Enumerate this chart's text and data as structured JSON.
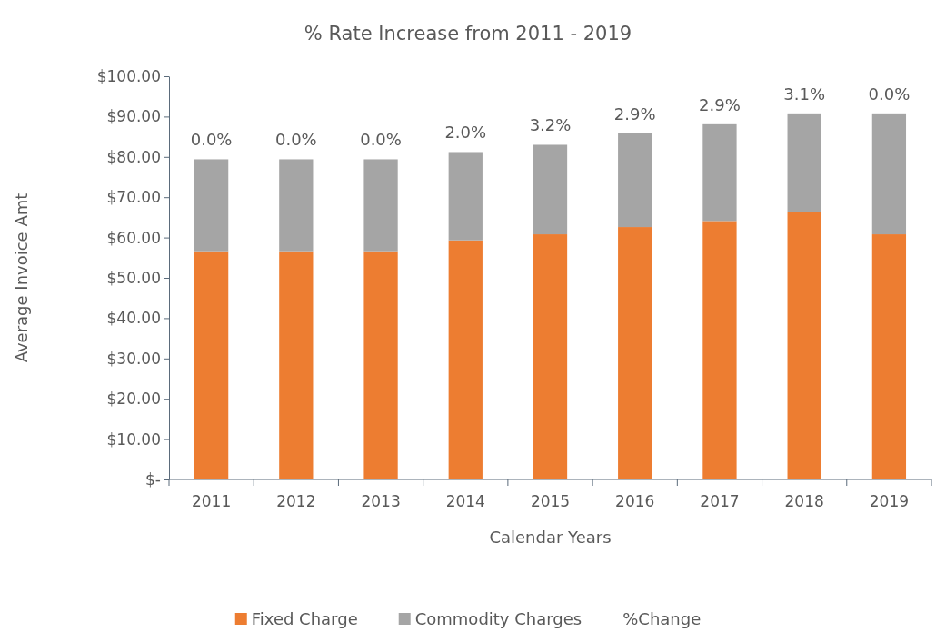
{
  "chart_data": {
    "type": "bar",
    "title": "% Rate Increase from 2011 - 2019",
    "xlabel": "Calendar Years",
    "ylabel": "Average Invoice Amt",
    "categories": [
      "2011",
      "2012",
      "2013",
      "2014",
      "2015",
      "2016",
      "2017",
      "2018",
      "2019"
    ],
    "stacked": true,
    "legend": "bottom",
    "grid": false,
    "ylim": [
      0,
      100
    ],
    "yticks": [
      {
        "value": 0,
        "label": "$-"
      },
      {
        "value": 10,
        "label": "$10.00"
      },
      {
        "value": 20,
        "label": "$20.00"
      },
      {
        "value": 30,
        "label": "$30.00"
      },
      {
        "value": 40,
        "label": "$40.00"
      },
      {
        "value": 50,
        "label": "$50.00"
      },
      {
        "value": 60,
        "label": "$60.00"
      },
      {
        "value": 70,
        "label": "$70.00"
      },
      {
        "value": 80,
        "label": "$80.00"
      },
      {
        "value": 90,
        "label": "$90.00"
      },
      {
        "value": 100,
        "label": "$100.00"
      }
    ],
    "series": [
      {
        "name": "Fixed Charge",
        "color": "#ed7d31",
        "values": [
          56.6,
          56.6,
          56.6,
          59.3,
          60.8,
          62.6,
          64.1,
          66.4,
          60.8
        ]
      },
      {
        "name": "Commodity Charges",
        "color": "#a5a5a5",
        "values": [
          22.8,
          22.8,
          22.8,
          21.9,
          22.2,
          23.3,
          24.0,
          24.4,
          30.0
        ]
      }
    ],
    "annotations": [
      "%Change",
      {
        "text": "0.0%",
        "x": "2011",
        "y": 79.4
      },
      {
        "text": "0.0%",
        "x": "2012",
        "y": 79.4
      },
      {
        "text": "0.0%",
        "x": "2013",
        "y": 79.4
      },
      {
        "text": "2.0%",
        "x": "2014",
        "y": 81.2
      },
      {
        "text": "3.2%",
        "x": "2015",
        "y": 83.0
      },
      {
        "text": "2.9%",
        "x": "2016",
        "y": 85.9
      },
      {
        "text": "2.9%",
        "x": "2017",
        "y": 88.1
      },
      {
        "text": "3.1%",
        "x": "2018",
        "y": 90.8
      },
      {
        "text": "0.0%",
        "x": "2019",
        "y": 90.8
      }
    ]
  }
}
